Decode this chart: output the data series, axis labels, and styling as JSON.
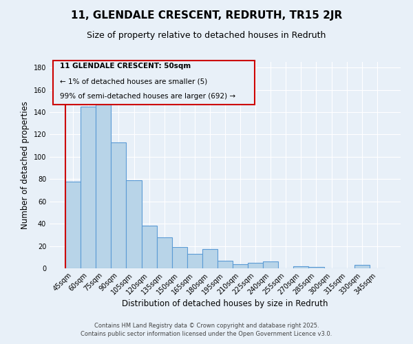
{
  "title": "11, GLENDALE CRESCENT, REDRUTH, TR15 2JR",
  "subtitle": "Size of property relative to detached houses in Redruth",
  "xlabel": "Distribution of detached houses by size in Redruth",
  "ylabel": "Number of detached properties",
  "footer_line1": "Contains HM Land Registry data © Crown copyright and database right 2025.",
  "footer_line2": "Contains public sector information licensed under the Open Government Licence v3.0.",
  "annotation_title": "11 GLENDALE CRESCENT: 50sqm",
  "annotation_line1": "← 1% of detached houses are smaller (5)",
  "annotation_line2": "99% of semi-detached houses are larger (692) →",
  "bar_color": "#b8d4e8",
  "bar_edge_color": "#5b9bd5",
  "highlight_bar_edge_color": "#cc0000",
  "background_color": "#e8f0f8",
  "annotation_box_edge": "#cc0000",
  "grid_color": "#ffffff",
  "categories": [
    "45sqm",
    "60sqm",
    "75sqm",
    "90sqm",
    "105sqm",
    "120sqm",
    "135sqm",
    "150sqm",
    "165sqm",
    "180sqm",
    "195sqm",
    "210sqm",
    "225sqm",
    "240sqm",
    "255sqm",
    "270sqm",
    "285sqm",
    "300sqm",
    "315sqm",
    "330sqm",
    "345sqm"
  ],
  "values": [
    78,
    145,
    148,
    113,
    79,
    38,
    28,
    19,
    13,
    17,
    7,
    4,
    5,
    6,
    0,
    2,
    1,
    0,
    0,
    3,
    0
  ],
  "highlight_index": 0,
  "ylim": [
    0,
    185
  ],
  "yticks": [
    0,
    20,
    40,
    60,
    80,
    100,
    120,
    140,
    160,
    180
  ],
  "title_fontsize": 11,
  "subtitle_fontsize": 9,
  "axis_label_fontsize": 8.5,
  "tick_fontsize": 7,
  "footer_fontsize": 6,
  "annotation_fontsize": 7.5
}
